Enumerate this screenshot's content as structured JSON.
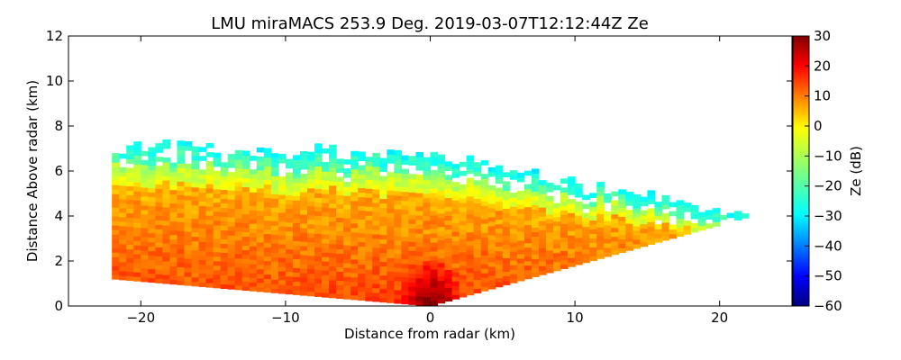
{
  "chart_data": {
    "type": "heatmap",
    "title": "LMU miraMACS 253.9 Deg. 2019-03-07T12:12:44Z  Ze",
    "xlabel": "Distance from radar (km)",
    "ylabel": "Distance Above radar  (km)",
    "xlim": [
      -25,
      25
    ],
    "ylim": [
      0,
      12
    ],
    "x_ticks": [
      -20,
      -10,
      0,
      10,
      20
    ],
    "x_tick_labels": [
      "−20",
      "−10",
      "0",
      "10",
      "20"
    ],
    "y_ticks": [
      0,
      2,
      4,
      6,
      8,
      10,
      12
    ],
    "y_tick_labels": [
      "0",
      "2",
      "4",
      "6",
      "8",
      "10",
      "12"
    ],
    "colorbar": {
      "label": "Ze (dB)",
      "range": [
        -60,
        30
      ],
      "colormap": "jet",
      "ticks": [
        30,
        20,
        10,
        0,
        -10,
        -20,
        -30,
        -40,
        -50,
        -60
      ],
      "tick_labels": [
        "30",
        "20",
        "10",
        "0",
        "−10",
        "−20",
        "−30",
        "−40",
        "−50",
        "−60"
      ]
    },
    "field": {
      "description_units": "km",
      "radar_position": [
        0,
        0
      ],
      "echo_top_left": 7.2,
      "echo_top_center": 6.6,
      "echo_top_right": 4.0,
      "left_edge_x": -22,
      "right_edge_x": 22,
      "strong_layer_height": [
        1.0,
        4.5
      ],
      "peak_Ze": 30,
      "min_Ze": -35
    }
  }
}
